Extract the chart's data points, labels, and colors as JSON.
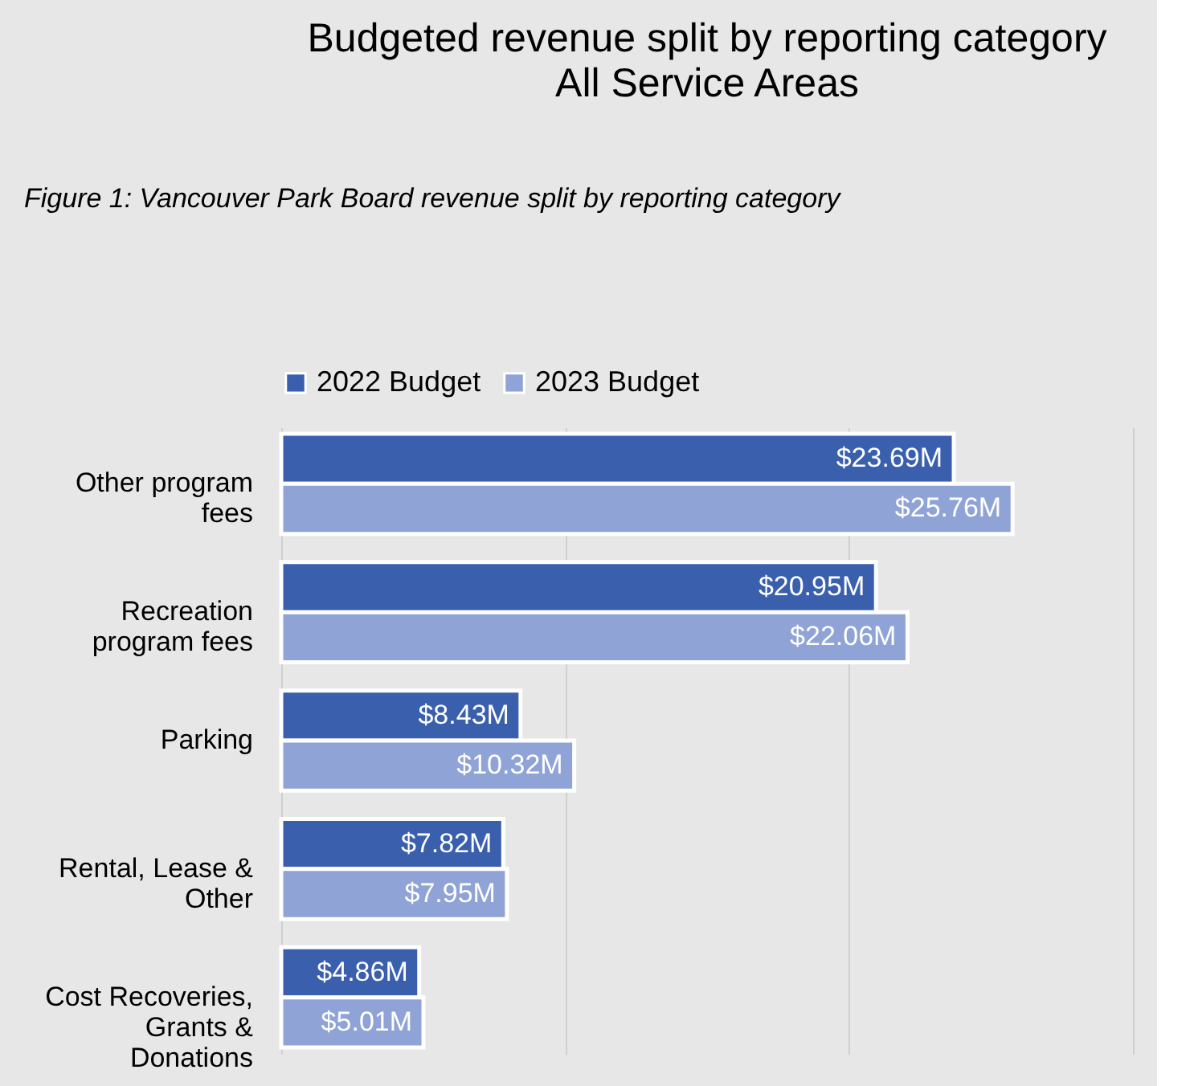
{
  "chart_data": {
    "type": "bar",
    "orientation": "horizontal",
    "title": "Budgeted revenue split by reporting category",
    "subtitle": "All Service Areas",
    "annotations": [
      "Figure 1: Vancouver Park Board revenue split by reporting category"
    ],
    "categories": [
      "Other program fees",
      "Recreation program fees",
      "Parking",
      "Rental, Lease & Other",
      "Cost Recoveries, Grants & Donations"
    ],
    "series": [
      {
        "name": "2022 Budget",
        "color": "#3a5fad",
        "values": [
          23.69,
          20.95,
          8.43,
          7.82,
          4.86
        ],
        "value_labels": [
          "$23.69M",
          "$20.95M",
          "$8.43M",
          "$7.82M",
          "$4.86M"
        ]
      },
      {
        "name": "2023 Budget",
        "color": "#8fa3d6",
        "values": [
          25.76,
          22.06,
          10.32,
          7.95,
          5.01
        ],
        "value_labels": [
          "$25.76M",
          "$22.06M",
          "$10.32M",
          "$7.95M",
          "$5.01M"
        ]
      }
    ],
    "xlim": [
      0,
      30
    ],
    "xticks": [
      {
        "value": 0,
        "label": null
      },
      {
        "value": 10,
        "label": null
      },
      {
        "value": 20,
        "label": null
      },
      {
        "value": 30,
        "label": null
      }
    ],
    "tick_labels": "y",
    "grid": "x",
    "legend": "top"
  }
}
